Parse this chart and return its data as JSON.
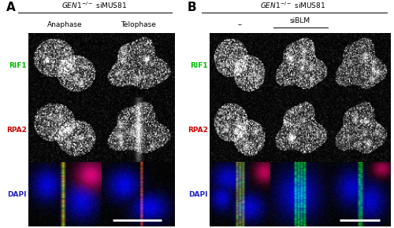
{
  "fig_width": 5.0,
  "fig_height": 2.9,
  "dpi": 100,
  "bg_color": "#ffffff",
  "panel_A": {
    "label": "A",
    "col_labels": [
      "Anaphase",
      "Telophase"
    ],
    "row_labels": [
      "RIF1",
      "RPA2",
      "DAPI"
    ],
    "row_label_colors": [
      "#00bb00",
      "#cc0000",
      "#2222cc"
    ],
    "n_cols": 2,
    "n_rows": 3
  },
  "panel_B": {
    "label": "B",
    "col_labels": [
      "-",
      "siBLM_col1",
      "siBLM_col2"
    ],
    "row_labels": [
      "RIF1",
      "RPA2",
      "DAPI"
    ],
    "row_label_colors": [
      "#00bb00",
      "#cc0000",
      "#2222cc"
    ],
    "n_cols": 3,
    "n_rows": 3
  },
  "title_text": "GEN1",
  "title_superscript": "-/-",
  "title_plain": " siMUS81",
  "scale_bar_color": "#ffffff"
}
